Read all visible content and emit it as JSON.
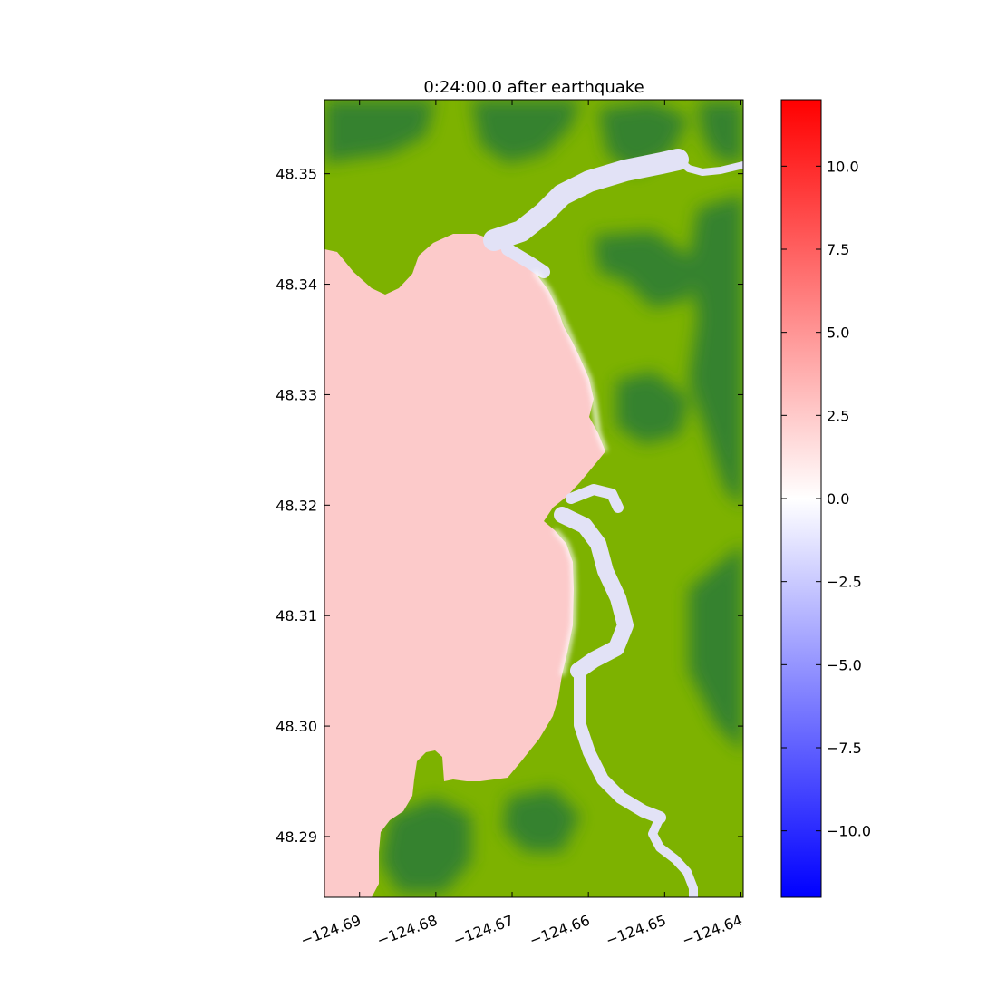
{
  "chart_data": {
    "type": "heatmap",
    "title": "0:24:00.0 after earthquake",
    "xlabel": "",
    "ylabel": "",
    "xlim": [
      -124.6946,
      -124.6397
    ],
    "ylim": [
      48.2845,
      48.3567
    ],
    "x_ticks": [
      -124.69,
      -124.68,
      -124.67,
      -124.66,
      -124.65,
      -124.64
    ],
    "x_tick_labels": [
      "−124.69",
      "−124.68",
      "−124.67",
      "−124.66",
      "−124.65",
      "−124.64"
    ],
    "y_ticks": [
      48.29,
      48.3,
      48.31,
      48.32,
      48.33,
      48.34,
      48.35
    ],
    "y_tick_labels": [
      "48.29",
      "48.30",
      "48.31",
      "48.32",
      "48.33",
      "48.34",
      "48.35"
    ],
    "colorbar": {
      "colormap": "bwr",
      "range": [
        -12,
        12
      ],
      "ticks": [
        -10.0,
        -7.5,
        -5.0,
        -2.5,
        0.0,
        2.5,
        5.0,
        7.5,
        10.0
      ],
      "tick_labels": [
        "−10.0",
        "−7.5",
        "−5.0",
        "−2.5",
        "0.0",
        "2.5",
        "5.0",
        "7.5",
        "10.0"
      ],
      "colors": {
        "min": "#0000ff",
        "mid": "#ffffff",
        "max": "#ff0000"
      }
    },
    "surface_value_offshore": 1.8,
    "surface_value_river": -0.6,
    "land_colors": {
      "lowland": "#7db200",
      "highland": "#338033"
    },
    "water_colors": {
      "offshore": "#fccaca",
      "river": "#e2e2f6"
    },
    "grid": false,
    "legend": "none"
  }
}
